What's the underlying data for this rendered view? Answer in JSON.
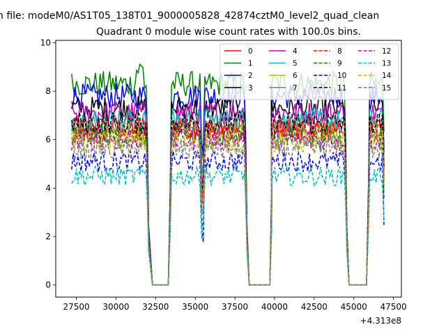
{
  "suptitle": "n file: modeM0/AS1T05_138T01_9000005828_42874cztM0_level2_quad_clean",
  "chart_data": {
    "type": "line",
    "title": "Quadrant 0 module wise count rates with 100.0s bins.",
    "xlabel": "",
    "ylabel": "",
    "x_offset_label": "+4.313e8",
    "xlim": [
      26200,
      48000
    ],
    "ylim": [
      -0.5,
      10.1
    ],
    "x_ticks": [
      27500,
      30000,
      32500,
      35000,
      37500,
      40000,
      42500,
      45000,
      47500
    ],
    "y_ticks": [
      0,
      2,
      4,
      6,
      8,
      10
    ],
    "x_tick_labels": [
      "27500",
      "30000",
      "32500",
      "35000",
      "37500",
      "40000",
      "42500",
      "45000",
      "47500"
    ],
    "y_tick_labels": [
      "0",
      "2",
      "4",
      "6",
      "8",
      "10"
    ],
    "grid": false,
    "legend_position": "top-right",
    "legend_columns": 4,
    "segments": [
      {
        "start": 27200,
        "end": 31900
      },
      {
        "start": 33500,
        "end": 38100
      },
      {
        "start": 39800,
        "end": 44400
      },
      {
        "start": 46000,
        "end": 46950
      }
    ],
    "gaps": [
      [
        32300,
        33300
      ],
      [
        38400,
        39700
      ],
      [
        44700,
        45800
      ]
    ],
    "series": [
      {
        "name": "0",
        "color": "#ff0000",
        "dash": "solid",
        "level": 6.5
      },
      {
        "name": "1",
        "color": "#008000",
        "dash": "solid",
        "level": 8.3
      },
      {
        "name": "2",
        "color": "#0000ff",
        "dash": "solid",
        "level": 7.8
      },
      {
        "name": "3",
        "color": "#000000",
        "dash": "solid",
        "level": 7.3
      },
      {
        "name": "4",
        "color": "#bf00bf",
        "dash": "solid",
        "level": 7.1
      },
      {
        "name": "5",
        "color": "#00bfbf",
        "dash": "solid",
        "level": 6.8
      },
      {
        "name": "6",
        "color": "#bfbf00",
        "dash": "solid",
        "level": 6.3
      },
      {
        "name": "7",
        "color": "#808080",
        "dash": "solid",
        "level": 6.6
      },
      {
        "name": "8",
        "color": "#ff0000",
        "dash": "dashed",
        "level": 6.4
      },
      {
        "name": "9",
        "color": "#008000",
        "dash": "dashed",
        "level": 6.1
      },
      {
        "name": "10",
        "color": "#0000ff",
        "dash": "dashed",
        "level": 5.1
      },
      {
        "name": "11",
        "color": "#000000",
        "dash": "dashed",
        "level": 6.7
      },
      {
        "name": "12",
        "color": "#bf00bf",
        "dash": "dashed",
        "level": 6.0
      },
      {
        "name": "13",
        "color": "#00bfbf",
        "dash": "dashed",
        "level": 4.5
      },
      {
        "name": "14",
        "color": "#bfbf00",
        "dash": "dashed",
        "level": 5.9
      },
      {
        "name": "15",
        "color": "#808080",
        "dash": "dashed",
        "level": 5.6
      }
    ]
  }
}
